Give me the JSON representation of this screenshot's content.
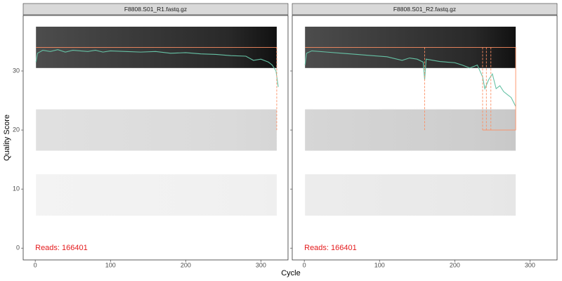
{
  "y_label": "Quality Score",
  "x_label": "Cycle",
  "chart_data": [
    {
      "type": "line",
      "title": "F8808.S01_R1.fastq.gz",
      "annotation": "Reads:  166401",
      "xlim": [
        -16,
        336
      ],
      "ylim": [
        -2,
        39.4
      ],
      "xticks": [
        0,
        100,
        200,
        300
      ],
      "yticks": [
        0,
        10,
        20,
        30
      ],
      "cycles": [
        1,
        321
      ],
      "score_bands": [
        [
          30.5,
          37.5
        ],
        [
          16.5,
          23.5
        ],
        [
          5.5,
          12.5
        ]
      ],
      "band_colors": [
        "#111111",
        "#d6d6d6",
        "#efefef"
      ],
      "series": [
        {
          "color": "#66c2a5",
          "dash": false,
          "x": [
            1,
            3,
            10,
            20,
            30,
            40,
            50,
            60,
            70,
            80,
            90,
            100,
            120,
            140,
            160,
            180,
            200,
            220,
            240,
            260,
            280,
            290,
            300,
            310,
            315,
            320,
            323
          ],
          "values": [
            31.5,
            33,
            33.5,
            33.3,
            33.6,
            33.2,
            33.5,
            33.4,
            33.3,
            33.5,
            33.2,
            33.4,
            33.3,
            33.2,
            33.3,
            33,
            33.1,
            32.9,
            32.8,
            32.6,
            32.5,
            31.8,
            32,
            31.5,
            31,
            30,
            27.3
          ]
        },
        {
          "color": "#fc8d62",
          "dash": false,
          "x": [
            1,
            321
          ],
          "values": [
            34,
            34
          ]
        },
        {
          "color": "#fc8d62",
          "dash": true,
          "x": [
            321,
            321
          ],
          "values": [
            34,
            20
          ]
        }
      ]
    },
    {
      "type": "line",
      "title": "F8808.S01_R2.fastq.gz",
      "annotation": "Reads:  166401",
      "xlim": [
        -16,
        336
      ],
      "ylim": [
        -2,
        39.4
      ],
      "xticks": [
        0,
        100,
        200,
        300
      ],
      "yticks": [
        0,
        10,
        20,
        30
      ],
      "cycles": [
        1,
        281
      ],
      "score_bands": [
        [
          30.5,
          37.5
        ],
        [
          16.5,
          23.5
        ],
        [
          5.5,
          12.5
        ]
      ],
      "band_colors": [
        "#111111",
        "#c8c8c8",
        "#e6e6e6"
      ],
      "series": [
        {
          "color": "#66c2a5",
          "dash": false,
          "x": [
            1,
            3,
            10,
            30,
            50,
            70,
            90,
            110,
            130,
            140,
            150,
            158,
            160,
            162,
            180,
            200,
            210,
            220,
            230,
            237,
            240,
            245,
            250,
            255,
            260,
            265,
            270,
            275,
            281
          ],
          "values": [
            31,
            33,
            33.4,
            33.2,
            33,
            32.8,
            32.6,
            32.4,
            31.8,
            32.2,
            32,
            31.5,
            28.5,
            32,
            31.6,
            31.4,
            31,
            30.5,
            31,
            29,
            27,
            28.5,
            29.5,
            27,
            27.5,
            26.5,
            26,
            25.5,
            24
          ]
        },
        {
          "color": "#fc8d62",
          "dash": false,
          "x": [
            1,
            281,
            281,
            237
          ],
          "values": [
            34,
            34,
            20,
            20
          ]
        },
        {
          "color": "#fc8d62",
          "dash": true,
          "x": [
            160,
            160,
            null,
            237,
            237,
            null,
            242,
            242,
            null,
            248,
            248
          ],
          "values": [
            34,
            20,
            null,
            34,
            20,
            null,
            34,
            20,
            null,
            34,
            20
          ]
        }
      ]
    }
  ]
}
